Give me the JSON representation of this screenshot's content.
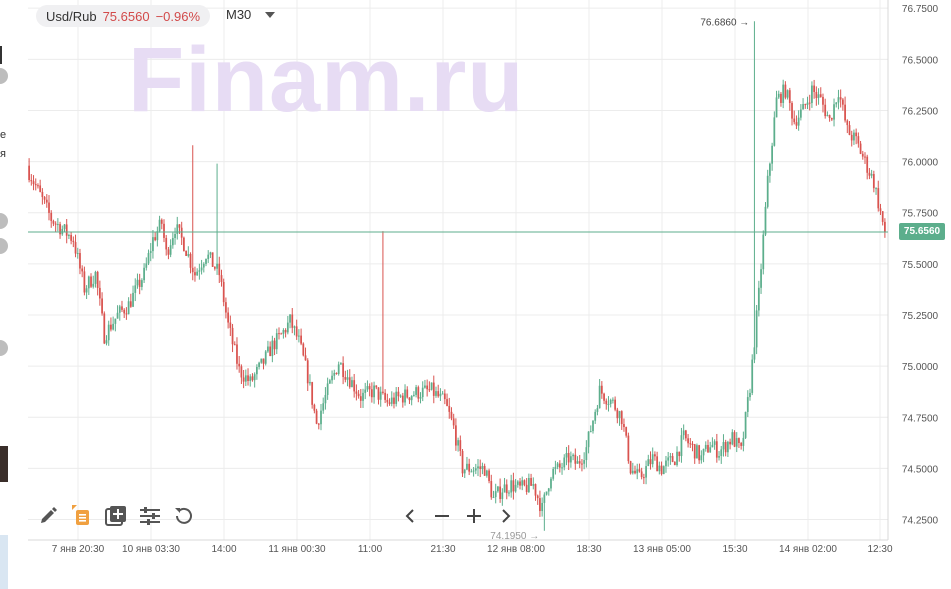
{
  "header": {
    "symbol": "Usd/Rub",
    "price": "75.6560",
    "change": "−0.96%",
    "timeframe": "M30"
  },
  "watermark": "Finam.ru",
  "current_price_label": "75.6560",
  "high_annotation": "76.6860",
  "low_annotation": "74.1950",
  "left_edge_text": [
    "e",
    "я"
  ],
  "colors": {
    "up": "#5cae8c",
    "down": "#d9534f",
    "current_line": "#5cae8c",
    "grid": "#ececec"
  },
  "toolbar": {
    "icons": [
      "pencil-icon",
      "layers-icon",
      "add-indicator-icon",
      "settings-sliders-icon",
      "reset-icon"
    ]
  },
  "navigation": {
    "icons": [
      "chevron-left-icon",
      "zoom-out-icon",
      "zoom-in-icon",
      "chevron-right-icon"
    ]
  },
  "chart_data": {
    "type": "candlestick",
    "y_ticks": [
      "76.7500",
      "76.5000",
      "76.2500",
      "76.0000",
      "75.7500",
      "75.5000",
      "75.2500",
      "75.0000",
      "74.7500",
      "74.5000",
      "74.2500"
    ],
    "ylim": [
      74.15,
      76.79
    ],
    "x_ticks": [
      "7 янв 20:30",
      "10 янв 03:30",
      "14:00",
      "11 янв 00:30",
      "11:00",
      "21:30",
      "12 янв 08:00",
      "18:30",
      "13 янв 05:00",
      "15:30",
      "14 янв 02:00",
      "12:30"
    ],
    "high": 76.686,
    "low": 74.195,
    "last": 75.656,
    "change_percent": -0.96,
    "close_path": [
      [
        0,
        75.95
      ],
      [
        10,
        75.72
      ],
      [
        20,
        75.62
      ],
      [
        25,
        75.38
      ],
      [
        30,
        75.45
      ],
      [
        34,
        75.15
      ],
      [
        40,
        75.25
      ],
      [
        45,
        75.3
      ],
      [
        52,
        75.45
      ],
      [
        56,
        75.62
      ],
      [
        60,
        75.7
      ],
      [
        62,
        75.55
      ],
      [
        66,
        75.68
      ],
      [
        70,
        75.6
      ],
      [
        75,
        75.45
      ],
      [
        80,
        75.55
      ],
      [
        86,
        75.45
      ],
      [
        90,
        75.2
      ],
      [
        95,
        74.98
      ],
      [
        100,
        74.92
      ],
      [
        106,
        75.02
      ],
      [
        110,
        75.1
      ],
      [
        114,
        75.15
      ],
      [
        118,
        75.22
      ],
      [
        122,
        75.12
      ],
      [
        126,
        74.95
      ],
      [
        130,
        74.72
      ],
      [
        134,
        74.85
      ],
      [
        140,
        75.02
      ],
      [
        146,
        74.92
      ],
      [
        150,
        74.85
      ],
      [
        156,
        74.88
      ],
      [
        162,
        74.82
      ],
      [
        168,
        74.85
      ],
      [
        175,
        74.87
      ],
      [
        182,
        74.88
      ],
      [
        188,
        74.82
      ],
      [
        192,
        74.7
      ],
      [
        196,
        74.5
      ],
      [
        200,
        74.5
      ],
      [
        206,
        74.5
      ],
      [
        210,
        74.35
      ],
      [
        214,
        74.4
      ],
      [
        218,
        74.42
      ],
      [
        222,
        74.4
      ],
      [
        228,
        74.42
      ],
      [
        232,
        74.3
      ],
      [
        236,
        74.48
      ],
      [
        240,
        74.5
      ],
      [
        244,
        74.55
      ],
      [
        248,
        74.52
      ],
      [
        252,
        74.6
      ],
      [
        258,
        74.88
      ],
      [
        264,
        74.82
      ],
      [
        268,
        74.75
      ],
      [
        272,
        74.5
      ],
      [
        276,
        74.45
      ],
      [
        282,
        74.55
      ],
      [
        286,
        74.5
      ],
      [
        292,
        74.55
      ],
      [
        296,
        74.65
      ],
      [
        300,
        74.6
      ],
      [
        304,
        74.55
      ],
      [
        308,
        74.62
      ],
      [
        312,
        74.58
      ],
      [
        318,
        74.65
      ],
      [
        322,
        74.58
      ],
      [
        326,
        74.9
      ],
      [
        330,
        75.35
      ],
      [
        334,
        75.9
      ],
      [
        338,
        76.3
      ],
      [
        342,
        76.35
      ],
      [
        346,
        76.2
      ],
      [
        350,
        76.25
      ],
      [
        354,
        76.35
      ],
      [
        358,
        76.3
      ],
      [
        362,
        76.2
      ],
      [
        366,
        76.35
      ],
      [
        370,
        76.15
      ],
      [
        374,
        76.1
      ],
      [
        378,
        76.0
      ],
      [
        382,
        75.9
      ],
      [
        386,
        75.7
      ],
      [
        387,
        75.656
      ]
    ]
  }
}
